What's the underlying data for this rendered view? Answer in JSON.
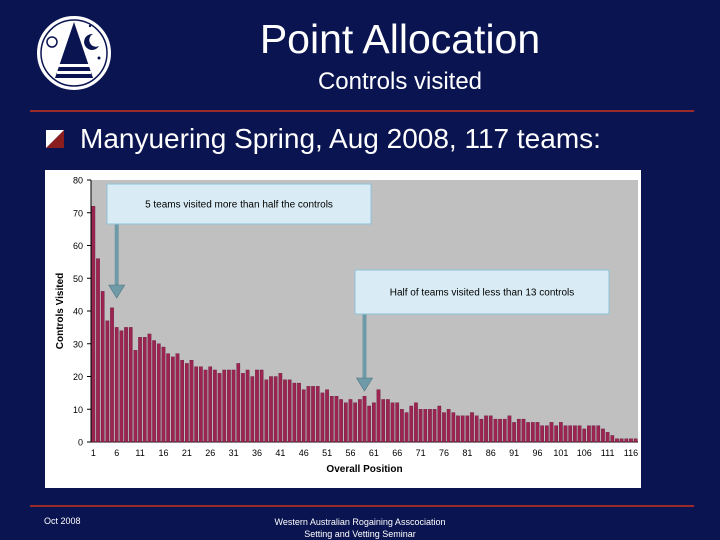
{
  "slide": {
    "title": "Point Allocation",
    "subtitle": "Controls visited",
    "bullet": "Manyuering Spring, Aug 2008, 117 teams:",
    "footer_left": "Oct 2008",
    "footer_line1": "Western Australian Rogaining Asscociation",
    "footer_line2": "Setting and Vetting Seminar"
  },
  "colors": {
    "background": "#0a1450",
    "rule": "#9a2a2a",
    "bar": "#9b2450",
    "plot_area": "#c0c0c0",
    "callout_fill": "#d9ecf5",
    "callout_border": "#8fc2d9",
    "arrow": "#6f9aa8"
  },
  "chart_data": {
    "type": "bar",
    "xlabel": "Overall Position",
    "ylabel": "Controls Visited",
    "ylim": [
      0,
      80
    ],
    "y_ticks": [
      "0",
      "10",
      "20",
      "30",
      "40",
      "50",
      "60",
      "70",
      "80"
    ],
    "x_tick_labels": [
      "1",
      "6",
      "11",
      "16",
      "21",
      "26",
      "31",
      "36",
      "41",
      "46",
      "51",
      "56",
      "61",
      "66",
      "71",
      "76",
      "81",
      "86",
      "91",
      "96",
      "101",
      "106",
      "111",
      "116"
    ],
    "x": [
      1,
      2,
      3,
      4,
      5,
      6,
      7,
      8,
      9,
      10,
      11,
      12,
      13,
      14,
      15,
      16,
      17,
      18,
      19,
      20,
      21,
      22,
      23,
      24,
      25,
      26,
      27,
      28,
      29,
      30,
      31,
      32,
      33,
      34,
      35,
      36,
      37,
      38,
      39,
      40,
      41,
      42,
      43,
      44,
      45,
      46,
      47,
      48,
      49,
      50,
      51,
      52,
      53,
      54,
      55,
      56,
      57,
      58,
      59,
      60,
      61,
      62,
      63,
      64,
      65,
      66,
      67,
      68,
      69,
      70,
      71,
      72,
      73,
      74,
      75,
      76,
      77,
      78,
      79,
      80,
      81,
      82,
      83,
      84,
      85,
      86,
      87,
      88,
      89,
      90,
      91,
      92,
      93,
      94,
      95,
      96,
      97,
      98,
      99,
      100,
      101,
      102,
      103,
      104,
      105,
      106,
      107,
      108,
      109,
      110,
      111,
      112,
      113,
      114,
      115,
      116,
      117
    ],
    "values": [
      72,
      56,
      46,
      37,
      41,
      35,
      34,
      35,
      35,
      28,
      32,
      32,
      33,
      31,
      30,
      29,
      27,
      26,
      27,
      25,
      24,
      25,
      23,
      23,
      22,
      23,
      22,
      21,
      22,
      22,
      22,
      24,
      21,
      22,
      20,
      22,
      22,
      19,
      20,
      20,
      21,
      19,
      19,
      18,
      18,
      16,
      17,
      17,
      17,
      15,
      16,
      14,
      14,
      13,
      12,
      13,
      12,
      13,
      14,
      11,
      12,
      16,
      13,
      13,
      12,
      12,
      10,
      9,
      11,
      12,
      10,
      10,
      10,
      10,
      11,
      9,
      10,
      9,
      8,
      8,
      8,
      9,
      8,
      7,
      8,
      8,
      7,
      7,
      7,
      8,
      6,
      7,
      7,
      6,
      6,
      6,
      5,
      5,
      6,
      5,
      6,
      5,
      5,
      5,
      5,
      4,
      5,
      5,
      5,
      4,
      3,
      2,
      1,
      1,
      1,
      1,
      1
    ],
    "callouts": [
      {
        "text": "5 teams visited more than half the controls",
        "target_x": 6
      },
      {
        "text": "Half of teams visited less than 13 controls",
        "target_x": 59
      }
    ]
  }
}
